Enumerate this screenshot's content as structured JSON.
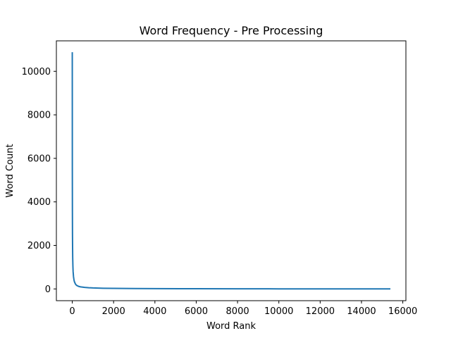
{
  "chart_data": {
    "type": "line",
    "title": "Word Frequency - Pre Processing",
    "xlabel": "Word Rank",
    "ylabel": "Word Count",
    "xlim": [
      -770,
      16150
    ],
    "ylim": [
      -540,
      11400
    ],
    "xticks": [
      0,
      2000,
      4000,
      6000,
      8000,
      10000,
      12000,
      14000,
      16000
    ],
    "yticks": [
      0,
      2000,
      4000,
      6000,
      8000,
      10000
    ],
    "grid": false,
    "legend": "none",
    "series": [
      {
        "color": "#1f77b4",
        "x": [
          0,
          3,
          6,
          10,
          15,
          20,
          30,
          40,
          60,
          80,
          100,
          150,
          200,
          300,
          400,
          600,
          800,
          1000,
          1500,
          2000,
          3000,
          4000,
          6000,
          8000,
          10000,
          12000,
          14000,
          15400
        ],
        "y": [
          10880,
          5400,
          3600,
          2500,
          1900,
          1450,
          1050,
          800,
          560,
          430,
          340,
          230,
          170,
          120,
          95,
          70,
          55,
          45,
          32,
          25,
          17,
          13,
          8,
          6,
          4,
          3,
          2,
          1
        ]
      }
    ]
  }
}
